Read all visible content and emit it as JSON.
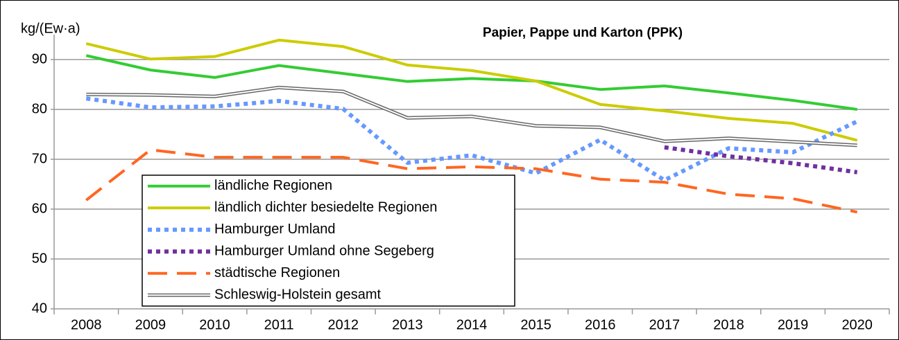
{
  "chart_data": {
    "type": "line",
    "title": "Papier, Pappe und Karton (PPK)",
    "y_label": "kg/(Ew·a)",
    "categories": [
      "2008",
      "2009",
      "2010",
      "2011",
      "2012",
      "2013",
      "2014",
      "2015",
      "2016",
      "2017",
      "2018",
      "2019",
      "2020"
    ],
    "ylim": [
      40,
      95
    ],
    "yticks": [
      40,
      50,
      60,
      70,
      80,
      90
    ],
    "grid": true,
    "legend": "lower left",
    "series": [
      {
        "name": "ländliche Regionen",
        "color": "#33cc33",
        "style": "solid",
        "values": [
          90.8,
          87.9,
          86.4,
          88.8,
          87.2,
          85.6,
          86.2,
          85.7,
          84.0,
          84.7,
          83.3,
          81.8,
          80.0
        ]
      },
      {
        "name": "ländlich dichter besiedelte Regionen",
        "color": "#cccc00",
        "style": "solid",
        "values": [
          93.2,
          90.1,
          90.6,
          93.9,
          92.6,
          88.9,
          87.8,
          85.7,
          81.0,
          79.7,
          78.2,
          77.2,
          73.8
        ]
      },
      {
        "name": "Hamburger Umland",
        "color": "#6699ff",
        "style": "dotted",
        "values": [
          82.2,
          80.4,
          80.6,
          81.7,
          80.1,
          69.3,
          70.8,
          67.2,
          73.9,
          65.8,
          72.2,
          71.4,
          77.6
        ]
      },
      {
        "name": "Hamburger Umland ohne Segeberg",
        "color": "#7030a0",
        "style": "dotted",
        "values": [
          null,
          null,
          null,
          null,
          null,
          null,
          null,
          null,
          null,
          72.4,
          70.6,
          69.2,
          67.4
        ]
      },
      {
        "name": "städtische Regionen",
        "color": "#ff6622",
        "style": "dashed",
        "values": [
          61.8,
          71.9,
          70.4,
          70.4,
          70.4,
          68.1,
          68.5,
          68.1,
          66.0,
          65.4,
          63.0,
          62.1,
          59.4
        ]
      },
      {
        "name": "Schleswig-Holstein gesamt",
        "color": "#666666",
        "style": "double",
        "values": [
          83.0,
          82.9,
          82.6,
          84.4,
          83.6,
          78.3,
          78.6,
          76.7,
          76.4,
          73.6,
          74.2,
          73.5,
          72.8
        ]
      }
    ]
  }
}
